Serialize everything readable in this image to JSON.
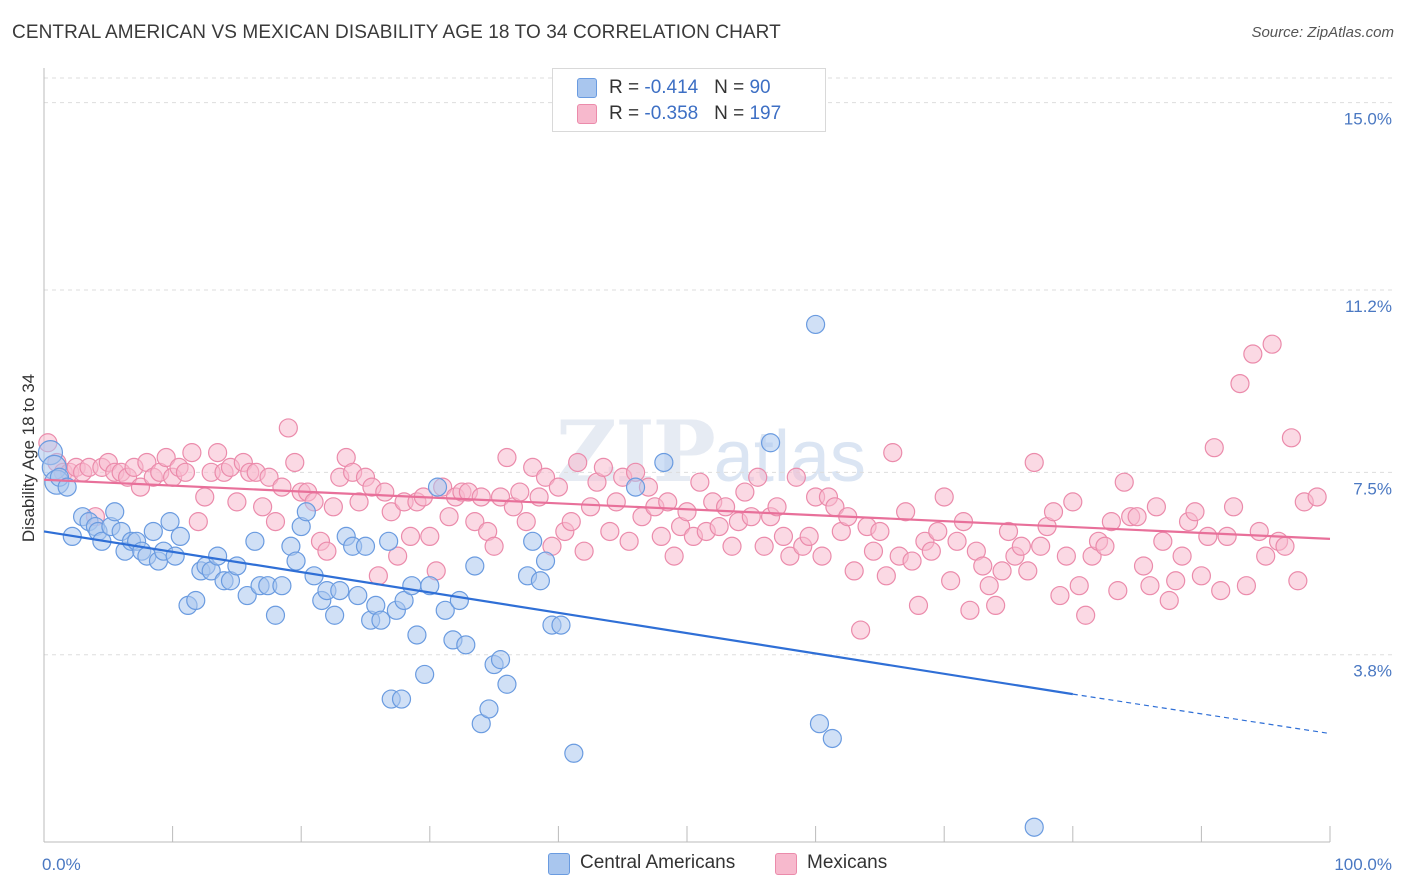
{
  "title": "CENTRAL AMERICAN VS MEXICAN DISABILITY AGE 18 TO 34 CORRELATION CHART",
  "source": "Source: ZipAtlas.com",
  "watermark": {
    "zip": "ZIP",
    "atlas": "atlas"
  },
  "legend": {
    "rows": [
      {
        "r_label": "R = ",
        "r_value": "-0.414",
        "n_label": "N = ",
        "n_value": "90",
        "color": "#a9c6ee"
      },
      {
        "r_label": "R = ",
        "r_value": "-0.358",
        "n_label": "N = ",
        "n_value": "197",
        "color": "#f7b9cd"
      }
    ]
  },
  "bottom_legend": [
    {
      "label": "Central Americans",
      "color": "#a9c6ee"
    },
    {
      "label": "Mexicans",
      "color": "#f7b9cd"
    }
  ],
  "chart_data": {
    "type": "scatter",
    "title": "CENTRAL AMERICAN VS MEXICAN DISABILITY AGE 18 TO 34 CORRELATION CHART",
    "xlabel": "",
    "ylabel": "Disability Age 18 to 34",
    "xlim": [
      0,
      100
    ],
    "ylim": [
      0,
      15.5
    ],
    "x_tick_labels": [
      {
        "value": 0,
        "label": "0.0%"
      },
      {
        "value": 100,
        "label": "100.0%"
      }
    ],
    "y_tick_labels": [
      {
        "value": 3.8,
        "label": "3.8%"
      },
      {
        "value": 7.5,
        "label": "7.5%"
      },
      {
        "value": 11.2,
        "label": "11.2%"
      },
      {
        "value": 15.0,
        "label": "15.0%"
      }
    ],
    "grid": true,
    "series": [
      {
        "name": "Central Americans",
        "color": "#6a9be0",
        "fill": "#a9c6ee",
        "trend": {
          "x0": 0,
          "y0": 6.3,
          "x1": 80,
          "y1": 3.0,
          "dash_to_x": 100,
          "dash_to_y": 2.2,
          "color": "#2f6fd6"
        },
        "points": [
          [
            0.5,
            7.9
          ],
          [
            0.8,
            7.6
          ],
          [
            1.0,
            7.3
          ],
          [
            1.2,
            7.4
          ],
          [
            1.8,
            7.2
          ],
          [
            2.2,
            6.2
          ],
          [
            3.0,
            6.6
          ],
          [
            3.5,
            6.5
          ],
          [
            4.0,
            6.4
          ],
          [
            4.2,
            6.3
          ],
          [
            4.5,
            6.1
          ],
          [
            5.2,
            6.4
          ],
          [
            5.5,
            6.7
          ],
          [
            6.0,
            6.3
          ],
          [
            6.3,
            5.9
          ],
          [
            6.8,
            6.1
          ],
          [
            7.2,
            6.1
          ],
          [
            7.6,
            5.9
          ],
          [
            8.0,
            5.8
          ],
          [
            8.5,
            6.3
          ],
          [
            8.9,
            5.7
          ],
          [
            9.3,
            5.9
          ],
          [
            9.8,
            6.5
          ],
          [
            10.2,
            5.8
          ],
          [
            10.6,
            6.2
          ],
          [
            11.2,
            4.8
          ],
          [
            11.8,
            4.9
          ],
          [
            12.2,
            5.5
          ],
          [
            12.6,
            5.6
          ],
          [
            13.0,
            5.5
          ],
          [
            13.5,
            5.8
          ],
          [
            14.0,
            5.3
          ],
          [
            14.5,
            5.3
          ],
          [
            15.0,
            5.6
          ],
          [
            15.8,
            5.0
          ],
          [
            16.4,
            6.1
          ],
          [
            16.8,
            5.2
          ],
          [
            17.4,
            5.2
          ],
          [
            18.0,
            4.6
          ],
          [
            18.5,
            5.2
          ],
          [
            19.2,
            6.0
          ],
          [
            19.6,
            5.7
          ],
          [
            20.0,
            6.4
          ],
          [
            20.4,
            6.7
          ],
          [
            21.0,
            5.4
          ],
          [
            21.6,
            4.9
          ],
          [
            22.0,
            5.1
          ],
          [
            22.6,
            4.6
          ],
          [
            23.0,
            5.1
          ],
          [
            23.5,
            6.2
          ],
          [
            24.0,
            6.0
          ],
          [
            24.4,
            5.0
          ],
          [
            25.0,
            6.0
          ],
          [
            25.4,
            4.5
          ],
          [
            25.8,
            4.8
          ],
          [
            26.2,
            4.5
          ],
          [
            26.8,
            6.1
          ],
          [
            27.4,
            4.7
          ],
          [
            28.0,
            4.9
          ],
          [
            28.6,
            5.2
          ],
          [
            29.0,
            4.2
          ],
          [
            29.6,
            3.4
          ],
          [
            30.0,
            5.2
          ],
          [
            30.6,
            7.2
          ],
          [
            31.2,
            4.7
          ],
          [
            31.8,
            4.1
          ],
          [
            32.3,
            4.9
          ],
          [
            32.8,
            4.0
          ],
          [
            33.5,
            5.6
          ],
          [
            34.0,
            2.4
          ],
          [
            34.6,
            2.7
          ],
          [
            35.0,
            3.6
          ],
          [
            35.5,
            3.7
          ],
          [
            36.0,
            3.2
          ],
          [
            37.6,
            5.4
          ],
          [
            38.0,
            6.1
          ],
          [
            38.6,
            5.3
          ],
          [
            39.0,
            5.7
          ],
          [
            39.5,
            4.4
          ],
          [
            40.2,
            4.4
          ],
          [
            41.2,
            1.8
          ],
          [
            46.0,
            7.2
          ],
          [
            48.2,
            7.7
          ],
          [
            56.5,
            8.1
          ],
          [
            60.0,
            10.5
          ],
          [
            60.3,
            2.4
          ],
          [
            61.3,
            2.1
          ],
          [
            77.0,
            0.3
          ],
          [
            27.0,
            2.9
          ],
          [
            27.8,
            2.9
          ]
        ]
      },
      {
        "name": "Mexicans",
        "color": "#eb8bab",
        "fill": "#f7b9cd",
        "trend": {
          "x0": 0,
          "y0": 7.35,
          "x1": 100,
          "y1": 6.15,
          "color": "#e8709a"
        },
        "points": [
          [
            0.3,
            8.1
          ],
          [
            1.0,
            7.7
          ],
          [
            1.5,
            7.5
          ],
          [
            2.0,
            7.5
          ],
          [
            2.5,
            7.6
          ],
          [
            3.0,
            7.5
          ],
          [
            3.5,
            7.6
          ],
          [
            4.0,
            6.6
          ],
          [
            4.5,
            7.6
          ],
          [
            5.0,
            7.7
          ],
          [
            5.5,
            7.5
          ],
          [
            6.0,
            7.5
          ],
          [
            6.5,
            7.4
          ],
          [
            7.0,
            7.6
          ],
          [
            7.5,
            7.2
          ],
          [
            8.0,
            7.7
          ],
          [
            8.5,
            7.4
          ],
          [
            9.0,
            7.5
          ],
          [
            9.5,
            7.8
          ],
          [
            10.0,
            7.4
          ],
          [
            10.5,
            7.6
          ],
          [
            11.0,
            7.5
          ],
          [
            11.5,
            7.9
          ],
          [
            12.0,
            6.5
          ],
          [
            12.5,
            7.0
          ],
          [
            13.0,
            7.5
          ],
          [
            13.5,
            7.9
          ],
          [
            14.0,
            7.5
          ],
          [
            14.5,
            7.6
          ],
          [
            15.0,
            6.9
          ],
          [
            15.5,
            7.7
          ],
          [
            16.0,
            7.5
          ],
          [
            16.5,
            7.5
          ],
          [
            17.0,
            6.8
          ],
          [
            17.5,
            7.4
          ],
          [
            18.0,
            6.5
          ],
          [
            18.5,
            7.2
          ],
          [
            19.0,
            8.4
          ],
          [
            19.5,
            7.7
          ],
          [
            20.0,
            7.1
          ],
          [
            20.5,
            7.1
          ],
          [
            21.0,
            6.9
          ],
          [
            21.5,
            6.1
          ],
          [
            22.0,
            5.9
          ],
          [
            22.5,
            6.8
          ],
          [
            23.0,
            7.4
          ],
          [
            23.5,
            7.8
          ],
          [
            24.0,
            7.5
          ],
          [
            24.5,
            6.9
          ],
          [
            25.0,
            7.4
          ],
          [
            25.5,
            7.2
          ],
          [
            26.0,
            5.4
          ],
          [
            26.5,
            7.1
          ],
          [
            27.0,
            6.7
          ],
          [
            27.5,
            5.8
          ],
          [
            28.0,
            6.9
          ],
          [
            28.5,
            6.2
          ],
          [
            29.0,
            6.9
          ],
          [
            29.5,
            7.0
          ],
          [
            30.0,
            6.2
          ],
          [
            30.5,
            5.5
          ],
          [
            31.0,
            7.2
          ],
          [
            31.5,
            6.6
          ],
          [
            32.0,
            7.0
          ],
          [
            32.5,
            7.1
          ],
          [
            33.0,
            7.1
          ],
          [
            33.5,
            6.5
          ],
          [
            34.0,
            7.0
          ],
          [
            34.5,
            6.3
          ],
          [
            35.0,
            6.0
          ],
          [
            35.5,
            7.0
          ],
          [
            36.0,
            7.8
          ],
          [
            36.5,
            6.8
          ],
          [
            37.0,
            7.1
          ],
          [
            37.5,
            6.5
          ],
          [
            38.0,
            7.6
          ],
          [
            38.5,
            7.0
          ],
          [
            39.0,
            7.4
          ],
          [
            39.5,
            6.0
          ],
          [
            40.0,
            7.2
          ],
          [
            40.5,
            6.3
          ],
          [
            41.0,
            6.5
          ],
          [
            41.5,
            7.7
          ],
          [
            42.0,
            5.9
          ],
          [
            42.5,
            6.8
          ],
          [
            43.0,
            7.3
          ],
          [
            43.5,
            7.6
          ],
          [
            44.0,
            6.3
          ],
          [
            44.5,
            6.9
          ],
          [
            45.0,
            7.4
          ],
          [
            45.5,
            6.1
          ],
          [
            46.0,
            7.5
          ],
          [
            46.5,
            6.6
          ],
          [
            47.0,
            7.2
          ],
          [
            47.5,
            6.8
          ],
          [
            48.0,
            6.2
          ],
          [
            48.5,
            6.9
          ],
          [
            49.0,
            5.8
          ],
          [
            49.5,
            6.4
          ],
          [
            50.0,
            6.7
          ],
          [
            50.5,
            6.2
          ],
          [
            51.0,
            7.3
          ],
          [
            51.5,
            6.3
          ],
          [
            52.0,
            6.9
          ],
          [
            52.5,
            6.4
          ],
          [
            53.0,
            6.8
          ],
          [
            53.5,
            6.0
          ],
          [
            54.0,
            6.5
          ],
          [
            54.5,
            7.1
          ],
          [
            55.0,
            6.6
          ],
          [
            55.5,
            7.4
          ],
          [
            56.0,
            6.0
          ],
          [
            56.5,
            6.6
          ],
          [
            57.0,
            6.8
          ],
          [
            57.5,
            6.2
          ],
          [
            58.0,
            5.8
          ],
          [
            58.5,
            7.4
          ],
          [
            59.0,
            6.0
          ],
          [
            59.5,
            6.2
          ],
          [
            60.0,
            7.0
          ],
          [
            60.5,
            5.8
          ],
          [
            61.0,
            7.0
          ],
          [
            61.5,
            6.8
          ],
          [
            62.0,
            6.3
          ],
          [
            62.5,
            6.6
          ],
          [
            63.0,
            5.5
          ],
          [
            63.5,
            4.3
          ],
          [
            64.0,
            6.4
          ],
          [
            64.5,
            5.9
          ],
          [
            65.0,
            6.3
          ],
          [
            65.5,
            5.4
          ],
          [
            66.0,
            7.9
          ],
          [
            66.5,
            5.8
          ],
          [
            67.0,
            6.7
          ],
          [
            67.5,
            5.7
          ],
          [
            68.0,
            4.8
          ],
          [
            68.5,
            6.1
          ],
          [
            69.0,
            5.9
          ],
          [
            69.5,
            6.3
          ],
          [
            70.0,
            7.0
          ],
          [
            70.5,
            5.3
          ],
          [
            71.0,
            6.1
          ],
          [
            71.5,
            6.5
          ],
          [
            72.0,
            4.7
          ],
          [
            72.5,
            5.9
          ],
          [
            73.0,
            5.6
          ],
          [
            73.5,
            5.2
          ],
          [
            74.0,
            4.8
          ],
          [
            74.5,
            5.5
          ],
          [
            75.0,
            6.3
          ],
          [
            75.5,
            5.8
          ],
          [
            76.0,
            6.0
          ],
          [
            76.5,
            5.5
          ],
          [
            77.0,
            7.7
          ],
          [
            77.5,
            6.0
          ],
          [
            78.0,
            6.4
          ],
          [
            78.5,
            6.7
          ],
          [
            79.0,
            5.0
          ],
          [
            79.5,
            5.8
          ],
          [
            80.0,
            6.9
          ],
          [
            80.5,
            5.2
          ],
          [
            81.0,
            4.6
          ],
          [
            81.5,
            5.8
          ],
          [
            82.0,
            6.1
          ],
          [
            82.5,
            6.0
          ],
          [
            83.0,
            6.5
          ],
          [
            83.5,
            5.1
          ],
          [
            84.0,
            7.3
          ],
          [
            84.5,
            6.6
          ],
          [
            85.0,
            6.6
          ],
          [
            85.5,
            5.6
          ],
          [
            86.0,
            5.2
          ],
          [
            86.5,
            6.8
          ],
          [
            87.0,
            6.1
          ],
          [
            87.5,
            4.9
          ],
          [
            88.0,
            5.3
          ],
          [
            88.5,
            5.8
          ],
          [
            89.0,
            6.5
          ],
          [
            89.5,
            6.7
          ],
          [
            90.0,
            5.4
          ],
          [
            90.5,
            6.2
          ],
          [
            91.0,
            8.0
          ],
          [
            91.5,
            5.1
          ],
          [
            92.0,
            6.2
          ],
          [
            92.5,
            6.8
          ],
          [
            93.0,
            9.3
          ],
          [
            93.5,
            5.2
          ],
          [
            94.0,
            9.9
          ],
          [
            94.5,
            6.3
          ],
          [
            95.0,
            5.8
          ],
          [
            95.5,
            10.1
          ],
          [
            96.0,
            6.1
          ],
          [
            96.5,
            6.0
          ],
          [
            97.0,
            8.2
          ],
          [
            97.5,
            5.3
          ],
          [
            98.0,
            6.9
          ],
          [
            99.0,
            7.0
          ]
        ]
      }
    ]
  }
}
